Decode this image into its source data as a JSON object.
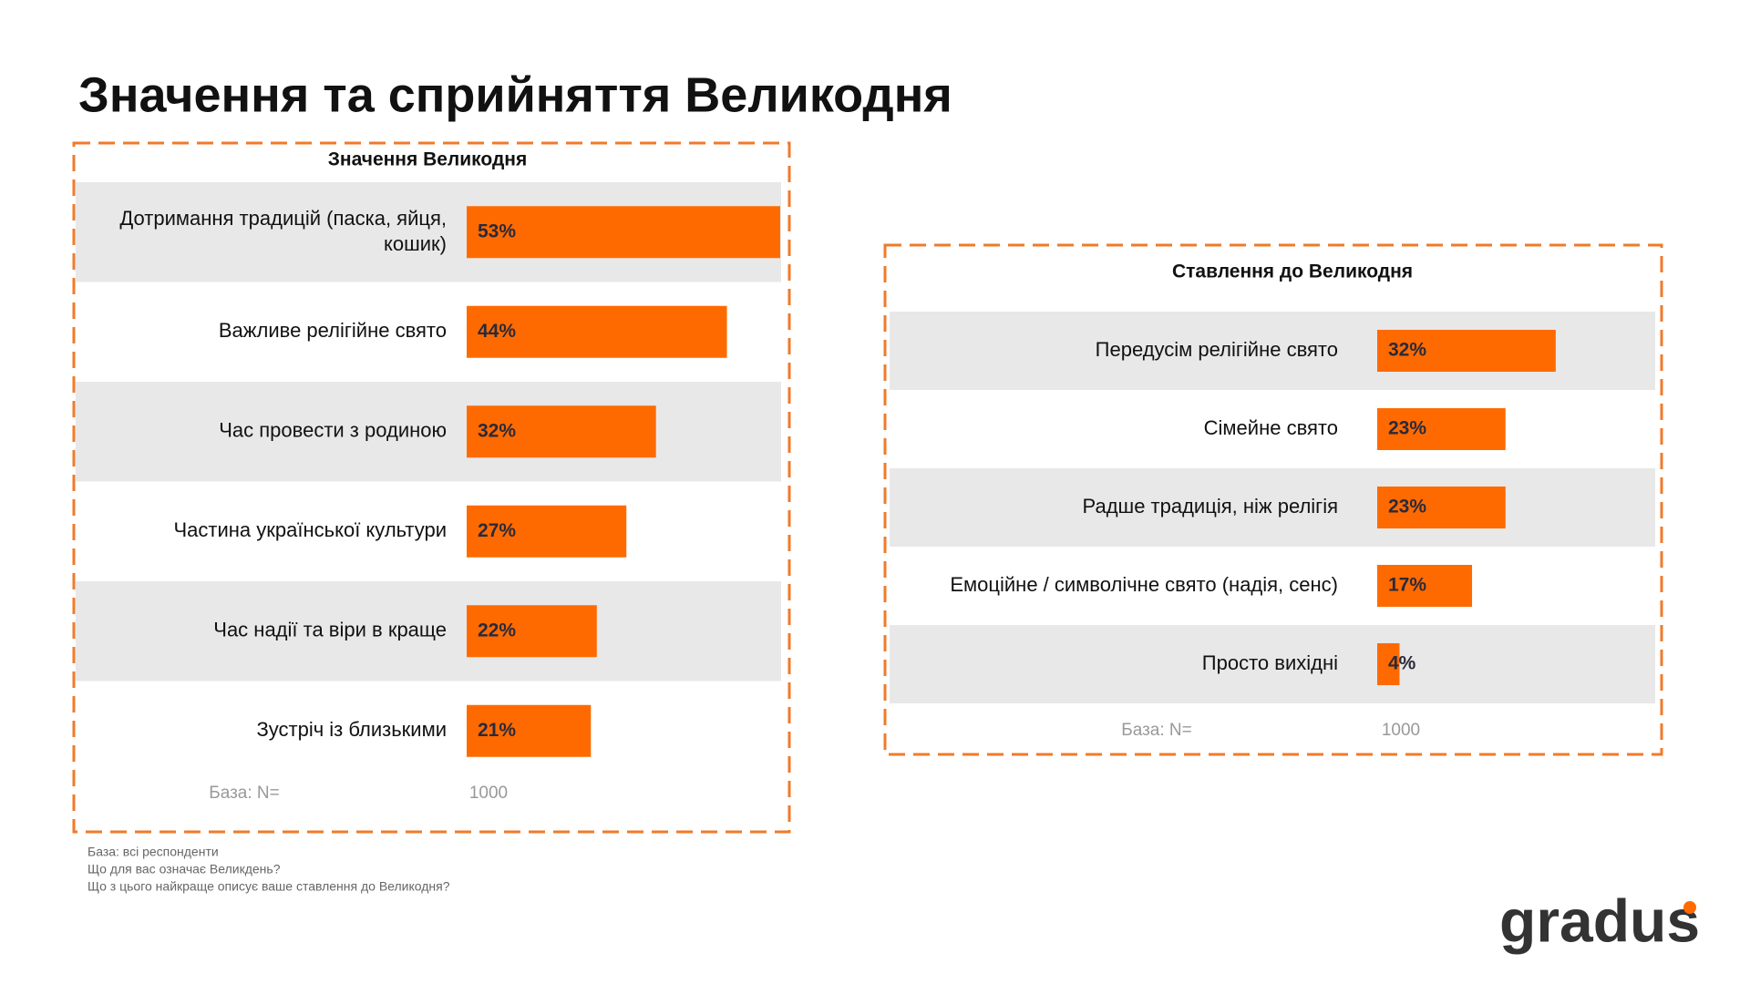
{
  "title": "Значення та сприйняття Великодня",
  "chart_data": [
    {
      "type": "bar",
      "orientation": "horizontal",
      "title": "Значення Великодня",
      "categories": [
        "Дотримання традицій (паска, яйця, кошик)",
        "Важливе релігійне свято",
        "Час провести з родиною",
        "Частина української культури",
        "Час надії та віри в краще",
        "Зустріч із близькими"
      ],
      "values": [
        53,
        44,
        32,
        27,
        22,
        21
      ],
      "value_labels": [
        "53%",
        "44%",
        "32%",
        "27%",
        "22%",
        "21%"
      ],
      "color": "#ff6a00",
      "base_label": "База: N=",
      "base_value": 1000
    },
    {
      "type": "bar",
      "orientation": "horizontal",
      "title": "Ставлення до Великодня",
      "categories": [
        "Передусім релігійне свято",
        "Сімейне свято",
        "Радше традиція, ніж релігія",
        "Емоційне / символічне свято (надія, сенс)",
        "Просто вихідні"
      ],
      "values": [
        32,
        23,
        23,
        17,
        4
      ],
      "value_labels": [
        "32%",
        "23%",
        "23%",
        "17%",
        "4%"
      ],
      "color": "#ff6a00",
      "base_label": "База: N=",
      "base_value": 1000
    }
  ],
  "footnotes": [
    "База: всі респонденти",
    "Що для вас означає Великдень?",
    "Що з цього найкраще описує ваше ставлення до Великодня?"
  ],
  "logo": "gradus"
}
